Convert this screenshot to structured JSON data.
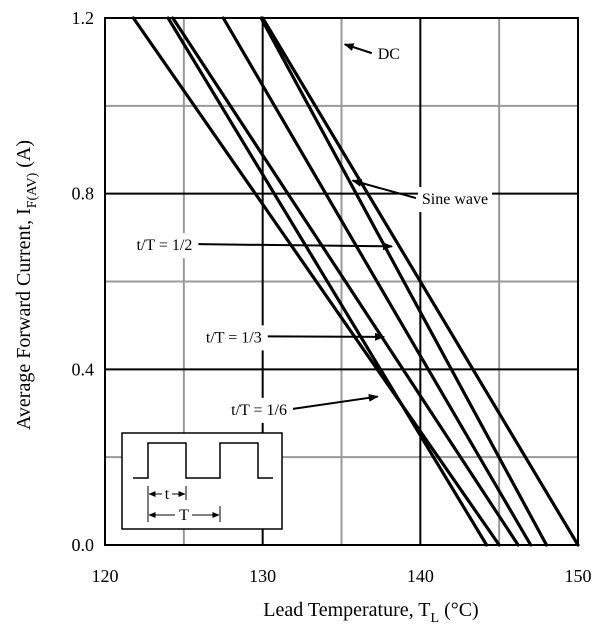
{
  "chart_data": {
    "type": "line",
    "title": "",
    "xlabel": {
      "main": "Lead Temperature, T",
      "sub": "L",
      "tail": " (°C)"
    },
    "ylabel": {
      "main": "Average Forward Current, I",
      "sub": "F(AV)",
      "tail": " (A)"
    },
    "xlim": [
      120,
      150
    ],
    "ylim": [
      0,
      1.2
    ],
    "xticks": [
      120,
      130,
      140,
      150
    ],
    "yticks": [
      0.0,
      0.4,
      0.8,
      1.2
    ],
    "xtick_labels": [
      "120",
      "130",
      "140",
      "150"
    ],
    "ytick_labels": [
      "0.0",
      "0.4",
      "0.8",
      "1.2"
    ],
    "grid": true,
    "minor_grid_x": [
      125,
      135,
      145
    ],
    "minor_grid_y": [
      0.2,
      0.6,
      1.0
    ],
    "series": [
      {
        "name": "DC",
        "x": [
          130,
          150
        ],
        "y": [
          1.2,
          0.0
        ]
      },
      {
        "name": "Sine wave",
        "x": [
          129.9,
          148.0
        ],
        "y": [
          1.2,
          0.0
        ]
      },
      {
        "name": "t/T = 1/2",
        "x": [
          127.5,
          147.0
        ],
        "y": [
          1.2,
          0.0
        ]
      },
      {
        "name": "t/T = 1/3",
        "x": [
          124.3,
          146.2
        ],
        "y": [
          1.2,
          0.0
        ]
      },
      {
        "name": "t/T = 1/6",
        "x": [
          121.8,
          145.0
        ],
        "y": [
          1.2,
          0.0
        ]
      },
      {
        "name": "",
        "x": [
          124.0,
          144.2
        ],
        "y": [
          1.2,
          0.0
        ]
      }
    ],
    "annotations": [
      {
        "text": "DC",
        "text_at": [
          137.3,
          1.12
        ],
        "arrow_to": [
          135.2,
          1.14
        ]
      },
      {
        "text": "Sine wave",
        "text_at": [
          140.1,
          0.79
        ],
        "arrow_to": [
          135.7,
          0.83
        ]
      },
      {
        "text": "t/T = 1/2",
        "text_at": [
          122.0,
          0.685
        ],
        "arrow_to": [
          138.2,
          0.68
        ]
      },
      {
        "text": "t/T = 1/3",
        "text_at": [
          126.4,
          0.475
        ],
        "arrow_to": [
          137.7,
          0.474
        ]
      },
      {
        "text": "t/T = 1/6",
        "text_at": [
          128.0,
          0.31
        ],
        "arrow_to": [
          137.3,
          0.338
        ]
      }
    ],
    "inset": {
      "t_label": "t",
      "T_label": "T"
    }
  }
}
